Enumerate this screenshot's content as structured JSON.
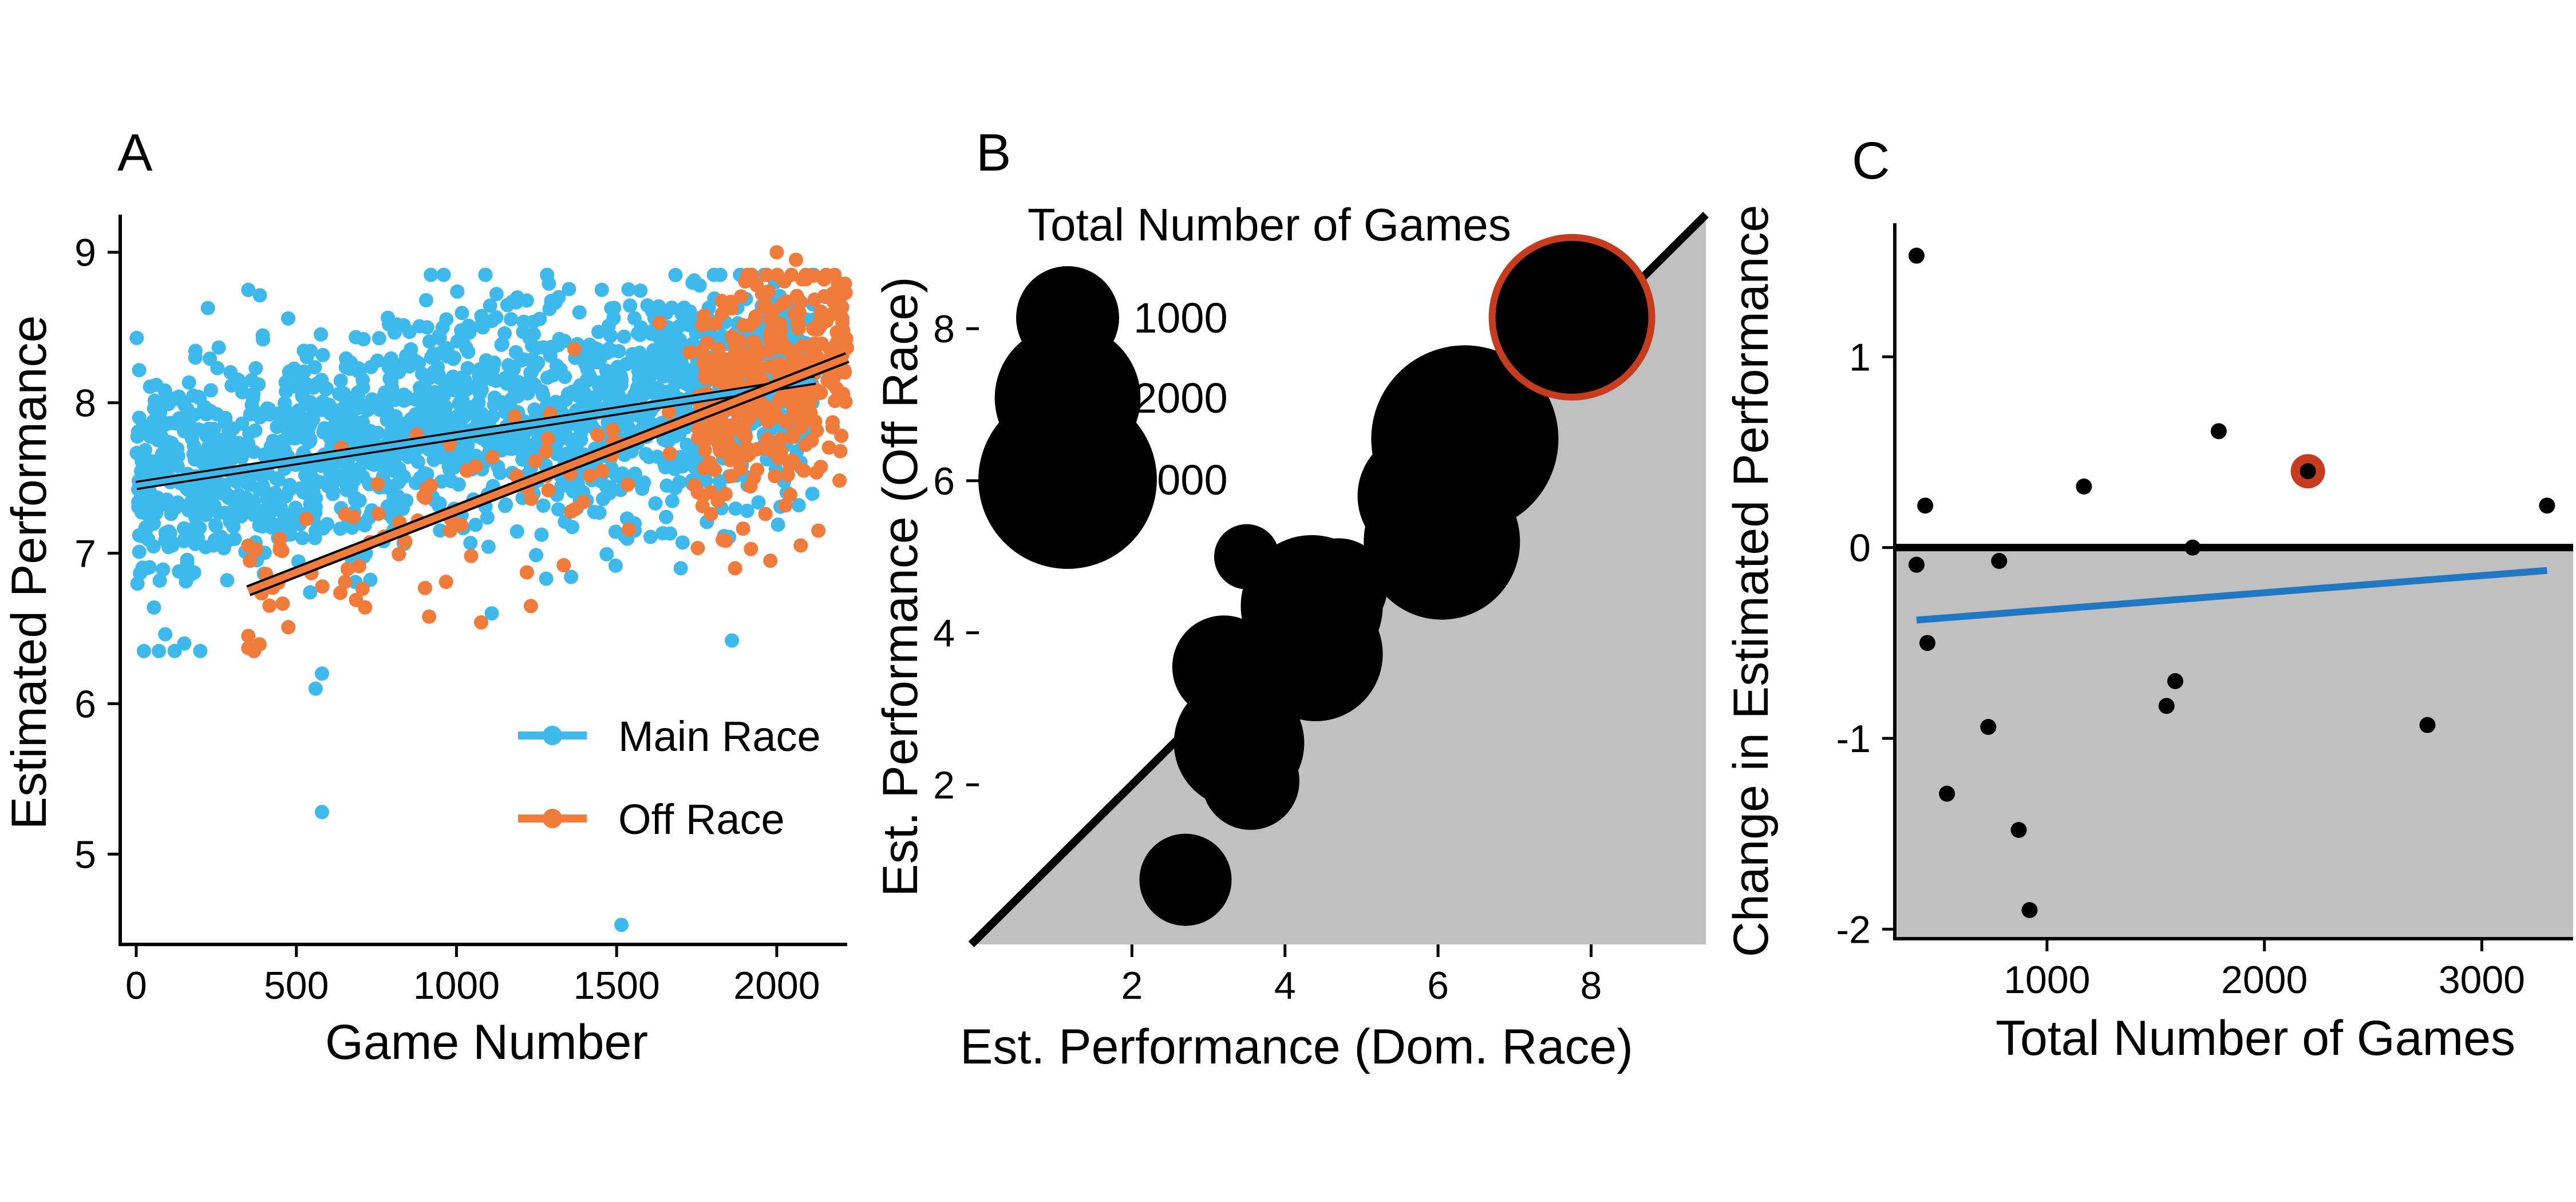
{
  "colors": {
    "main": "#3DB9EB",
    "off": "#F07B3A",
    "accent": "#C83C1E",
    "shade": "#C0C0C0",
    "trend_c": "#1F78C1",
    "black": "#000000"
  },
  "panels": [
    {
      "letter": "A",
      "chart_data": {
        "type": "scatter",
        "xlabel": "Game Number",
        "ylabel": "Estimated Performance",
        "xlim": [
          -50,
          2220
        ],
        "ylim": [
          4.4,
          9.25
        ],
        "xticks": [
          0,
          500,
          1000,
          1500,
          2000
        ],
        "yticks": [
          5,
          6,
          7,
          8,
          9
        ],
        "legend": {
          "placement": "bottom-right",
          "entries": [
            "Main Race",
            "Off Race"
          ]
        },
        "series": [
          {
            "name": "Main Race",
            "color_key": "main",
            "n_points": 1750,
            "x_range": [
              0,
              2120
            ],
            "trend": [
              [
                0,
                7.45
              ],
              [
                2120,
                8.15
              ]
            ],
            "outliers": [
              [
                350,
                8.75
              ],
              [
                920,
                8.85
              ],
              [
                960,
                8.85
              ],
              [
                1090,
                8.85
              ],
              [
                1190,
                8.7
              ],
              [
                1110,
                6.6
              ],
              [
                560,
                6.1
              ],
              [
                580,
                6.2
              ],
              [
                580,
                5.28
              ],
              [
                1515,
                4.53
              ],
              [
                1860,
                6.42
              ],
              [
                200,
                6.35
              ],
              [
                150,
                6.4
              ],
              [
                120,
                6.35
              ],
              [
                1700,
                6.9
              ]
            ]
          },
          {
            "name": "Off Race",
            "color_key": "off",
            "n_points": 450,
            "x_range": [
              350,
              2220
            ],
            "trend": [
              [
                350,
                6.75
              ],
              [
                2220,
                8.3
              ]
            ],
            "outliers": [
              [
                350,
                6.37
              ],
              [
                350,
                6.45
              ],
              [
                350,
                7.05
              ],
              [
                355,
                6.95
              ],
              [
                1870,
                6.9
              ],
              [
                1980,
                6.95
              ],
              [
                2000,
                9.0
              ],
              [
                2060,
                8.95
              ],
              [
                2130,
                7.15
              ]
            ]
          }
        ]
      }
    },
    {
      "letter": "B",
      "chart_data": {
        "type": "scatter",
        "xlabel": "Est. Performance (Dom. Race)",
        "ylabel": "Est. Performance (Off Race)",
        "xlim": [
          0,
          9.5
        ],
        "ylim": [
          -0.1,
          9.5
        ],
        "xticks": [
          2,
          4,
          6,
          8
        ],
        "yticks": [
          2,
          4,
          6,
          8
        ],
        "diagonal": "y = x",
        "shaded_region": "below y = x",
        "size_legend_title": "Total Number of Games",
        "size_legend": [
          1000,
          2000,
          3000
        ],
        "points": [
          {
            "x": 2.7,
            "y": 0.75,
            "games": 800
          },
          {
            "x": 3.5,
            "y": 5.0,
            "games": 400
          },
          {
            "x": 3.2,
            "y": 3.55,
            "games": 1000
          },
          {
            "x": 3.4,
            "y": 2.55,
            "games": 1600
          },
          {
            "x": 3.55,
            "y": 2.05,
            "games": 900
          },
          {
            "x": 4.35,
            "y": 4.35,
            "games": 1900
          },
          {
            "x": 4.4,
            "y": 3.72,
            "games": 1700
          },
          {
            "x": 4.6,
            "y": 3.65,
            "games": 700
          },
          {
            "x": 4.7,
            "y": 4.6,
            "games": 900
          },
          {
            "x": 5.8,
            "y": 5.8,
            "games": 1600
          },
          {
            "x": 5.8,
            "y": 5.2,
            "games": 500
          },
          {
            "x": 6.1,
            "y": 4.8,
            "games": 600
          },
          {
            "x": 6.05,
            "y": 5.2,
            "games": 2300
          },
          {
            "x": 6.35,
            "y": 6.9,
            "games": 1500
          },
          {
            "x": 6.35,
            "y": 6.55,
            "games": 3300
          },
          {
            "x": 7.75,
            "y": 8.15,
            "games": 2200,
            "highlight": true
          }
        ]
      }
    },
    {
      "letter": "C",
      "chart_data": {
        "type": "scatter",
        "xlabel": "Total Number of Games",
        "ylabel": "Change in Estimated Performance",
        "xlim": [
          300,
          3420
        ],
        "ylim": [
          -2.05,
          1.7
        ],
        "xticks": [
          1000,
          2000,
          3000
        ],
        "yticks": [
          -2,
          -1,
          0,
          1
        ],
        "reference_line": 0,
        "shaded_region": "below 0",
        "trend": [
          [
            400,
            -0.38
          ],
          [
            3300,
            -0.12
          ]
        ],
        "points": [
          {
            "x": 400,
            "y": 1.53
          },
          {
            "x": 400,
            "y": -0.09
          },
          {
            "x": 440,
            "y": 0.22
          },
          {
            "x": 450,
            "y": -0.5
          },
          {
            "x": 540,
            "y": -1.29
          },
          {
            "x": 730,
            "y": -0.94
          },
          {
            "x": 780,
            "y": -0.07
          },
          {
            "x": 870,
            "y": -1.48
          },
          {
            "x": 920,
            "y": -1.9
          },
          {
            "x": 1170,
            "y": 0.32
          },
          {
            "x": 1550,
            "y": -0.83
          },
          {
            "x": 1590,
            "y": -0.7
          },
          {
            "x": 1670,
            "y": 0.0
          },
          {
            "x": 1790,
            "y": 0.61
          },
          {
            "x": 2200,
            "y": 0.4,
            "highlight": true
          },
          {
            "x": 2750,
            "y": -0.93
          },
          {
            "x": 3300,
            "y": 0.22
          }
        ]
      }
    }
  ]
}
